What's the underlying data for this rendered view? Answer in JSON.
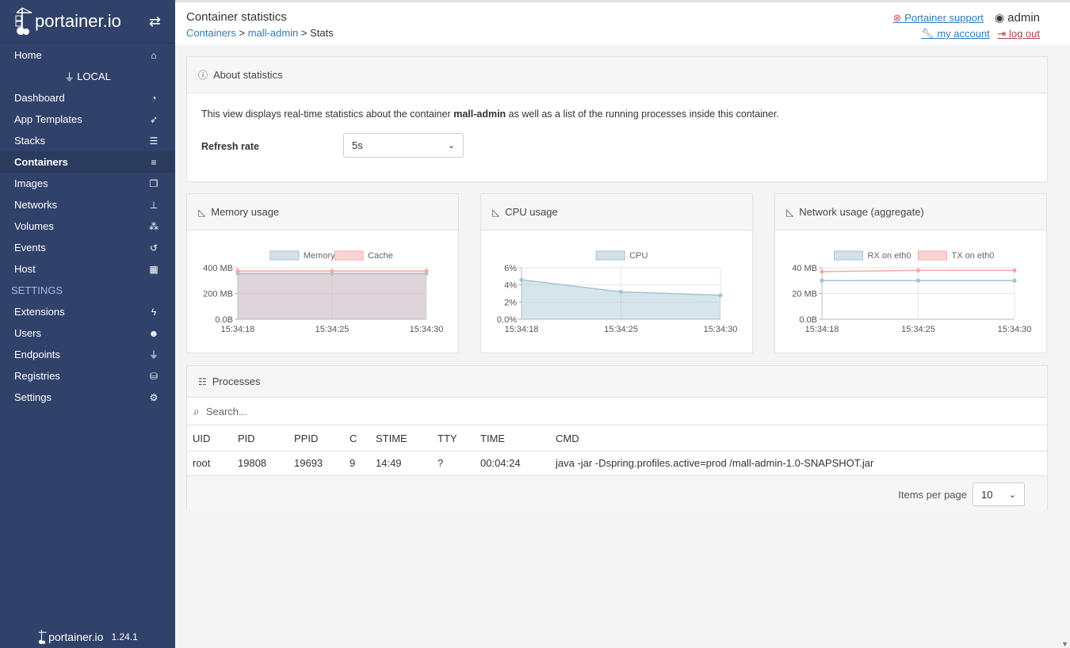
{
  "brand": {
    "name": "portainer.io",
    "version": "1.24.1"
  },
  "sidebar": {
    "home": "Home",
    "endpoint": "LOCAL",
    "items": [
      {
        "label": "Dashboard",
        "icon": "tachometer-icon"
      },
      {
        "label": "App Templates",
        "icon": "rocket-icon"
      },
      {
        "label": "Stacks",
        "icon": "th-list-icon"
      },
      {
        "label": "Containers",
        "icon": "server-icon"
      },
      {
        "label": "Images",
        "icon": "clone-icon"
      },
      {
        "label": "Networks",
        "icon": "sitemap-icon"
      },
      {
        "label": "Volumes",
        "icon": "cubes-icon"
      },
      {
        "label": "Events",
        "icon": "history-icon"
      },
      {
        "label": "Host",
        "icon": "th-icon"
      }
    ],
    "settings_heading": "SETTINGS",
    "settings_items": [
      {
        "label": "Extensions",
        "icon": "bolt-icon"
      },
      {
        "label": "Users",
        "icon": "users-icon"
      },
      {
        "label": "Endpoints",
        "icon": "plug-icon"
      },
      {
        "label": "Registries",
        "icon": "database-icon"
      },
      {
        "label": "Settings",
        "icon": "cogs-icon"
      }
    ],
    "active": "Containers"
  },
  "header": {
    "title": "Container statistics",
    "breadcrumb": {
      "containers": "Containers",
      "sep1": ">",
      "container": "mall-admin",
      "sep2": ">",
      "current": "Stats"
    },
    "support": "Portainer support",
    "user": "admin",
    "my_account": "my account",
    "log_out": "log out"
  },
  "about": {
    "title": "About statistics",
    "text_before": "This view displays real-time statistics about the container ",
    "container": "mall-admin",
    "text_after": " as well as a list of the running processes inside this container.",
    "refresh_label": "Refresh rate",
    "refresh_value": "5s"
  },
  "charts": {
    "memory_title": "Memory usage",
    "cpu_title": "CPU usage",
    "network_title": "Network usage (aggregate)"
  },
  "chart_data": [
    {
      "type": "area",
      "x": [
        "15:34:18",
        "15:34:25",
        "15:34:30"
      ],
      "series": [
        {
          "name": "Memory",
          "values": [
            355,
            355,
            355
          ],
          "color": "#a5c4d4"
        },
        {
          "name": "Cache",
          "values": [
            375,
            375,
            375
          ],
          "color": "#f7a8a8"
        }
      ],
      "yticks": [
        "0.0B",
        "200 MB",
        "400 MB"
      ],
      "ylim": [
        0,
        400
      ]
    },
    {
      "type": "area",
      "x": [
        "15:34:18",
        "15:34:25",
        "15:34:30"
      ],
      "series": [
        {
          "name": "CPU",
          "values": [
            4.6,
            3.2,
            2.8
          ],
          "color": "#a5c4d4"
        }
      ],
      "yticks": [
        "0.0%",
        "2%",
        "4%",
        "6%"
      ],
      "ylim": [
        0,
        6
      ]
    },
    {
      "type": "line",
      "x": [
        "15:34:18",
        "15:34:25",
        "15:34:30"
      ],
      "series": [
        {
          "name": "RX on eth0",
          "values": [
            30,
            30,
            30
          ],
          "color": "#a5c4d4"
        },
        {
          "name": "TX on eth0",
          "values": [
            37,
            38,
            38
          ],
          "color": "#f7a8a8"
        }
      ],
      "yticks": [
        "0.0B",
        "20 MB",
        "40 MB"
      ],
      "ylim": [
        0,
        40
      ]
    }
  ],
  "processes": {
    "title": "Processes",
    "search_placeholder": "Search...",
    "columns": [
      "UID",
      "PID",
      "PPID",
      "C",
      "STIME",
      "TTY",
      "TIME",
      "CMD"
    ],
    "rows": [
      [
        "root",
        "19808",
        "19693",
        "9",
        "14:49",
        "?",
        "00:04:24",
        "java -jar -Dspring.profiles.active=prod /mall-admin-1.0-SNAPSHOT.jar"
      ]
    ],
    "items_per_page_label": "Items per page",
    "items_per_page": "10"
  }
}
